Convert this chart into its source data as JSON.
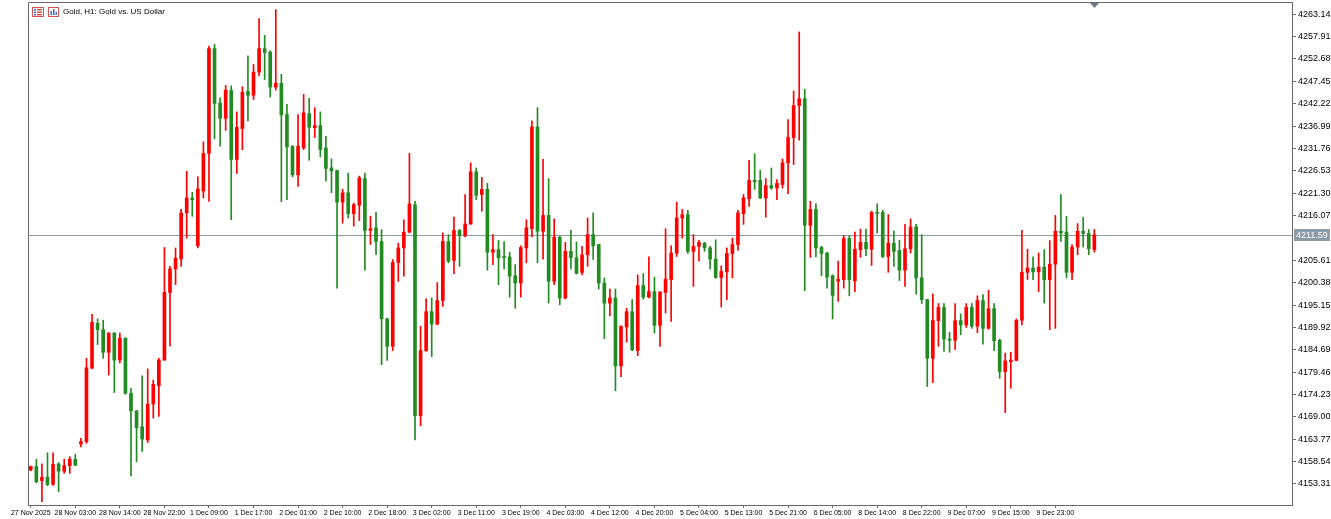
{
  "chart_data": {
    "type": "candlestick",
    "title": "Gold, H1: Gold vs. US Dollar",
    "categories": [
      "27 Nov 2025",
      null,
      null,
      null,
      null,
      null,
      null,
      null,
      "28 Nov 03:00",
      null,
      null,
      null,
      null,
      null,
      null,
      null,
      "28 Nov 14:00",
      null,
      null,
      null,
      null,
      null,
      null,
      null,
      "28 Nov 22:00",
      null,
      null,
      null,
      null,
      null,
      null,
      null,
      "1 Dec 09:00",
      null,
      null,
      null,
      null,
      null,
      null,
      null,
      "1 Dec 17:00",
      null,
      null,
      null,
      null,
      null,
      null,
      null,
      "2 Dec 01:00",
      null,
      null,
      null,
      null,
      null,
      null,
      null,
      "2 Dec 10:00",
      null,
      null,
      null,
      null,
      null,
      null,
      null,
      "2 Dec 18:00",
      null,
      null,
      null,
      null,
      null,
      null,
      null,
      "3 Dec 02:00",
      null,
      null,
      null,
      null,
      null,
      null,
      null,
      "3 Dec 11:00",
      null,
      null,
      null,
      null,
      null,
      null,
      null,
      "3 Dec 19:00",
      null,
      null,
      null,
      null,
      null,
      null,
      null,
      "4 Dec 03:00",
      null,
      null,
      null,
      null,
      null,
      null,
      null,
      "4 Dec 12:00",
      null,
      null,
      null,
      null,
      null,
      null,
      null,
      "4 Dec 20:00",
      null,
      null,
      null,
      null,
      null,
      null,
      null,
      "5 Dec 04:00",
      null,
      null,
      null,
      null,
      null,
      null,
      null,
      "5 Dec 13:00",
      null,
      null,
      null,
      null,
      null,
      null,
      null,
      "5 Dec 21:00",
      null,
      null,
      null,
      null,
      null,
      null,
      null,
      "6 Dec 05:00",
      null,
      null,
      null,
      null,
      null,
      null,
      null,
      "8 Dec 14:00",
      null,
      null,
      null,
      null,
      null,
      null,
      null,
      "8 Dec 22:00",
      null,
      null,
      null,
      null,
      null,
      null,
      null,
      "9 Dec 07:00",
      null,
      null,
      null,
      null,
      null,
      null,
      null,
      "9 Dec 15:00",
      null,
      null,
      null,
      null,
      null,
      null,
      null,
      "9 Dec 23:00",
      null,
      null,
      null,
      null,
      null,
      null,
      null,
      null,
      null,
      null,
      null,
      null,
      null,
      null,
      null,
      null,
      null,
      null,
      null,
      null,
      null,
      null,
      null,
      null,
      null,
      null,
      null,
      null,
      null,
      null,
      null,
      null,
      null,
      null,
      null,
      null,
      null,
      null,
      null,
      null,
      null,
      null
    ],
    "ohlc": [
      [
        4156.6,
        4157.5,
        4156.4,
        4157.4
      ],
      [
        4157.4,
        4159.1,
        4153.6,
        4153.8
      ],
      [
        4154.1,
        4158.0,
        4149.2,
        4154.9
      ],
      [
        4154.9,
        4160.6,
        4152.9,
        4153.2
      ],
      [
        4153.2,
        4160.6,
        4153.0,
        4157.9
      ],
      [
        4158.0,
        4158.3,
        4151.5,
        4156.3
      ],
      [
        4156.3,
        4159.1,
        4155.8,
        4157.6
      ],
      [
        4157.6,
        4159.7,
        4155.8,
        4159.1
      ],
      [
        4159.1,
        4160.3,
        4157.6,
        4157.7
      ],
      [
        4162.7,
        4164.0,
        4162.0,
        4163.2
      ],
      [
        4163.2,
        4182.7,
        4162.8,
        4180.5
      ],
      [
        4180.4,
        4193.0,
        4180.3,
        4191.1
      ],
      [
        4190.9,
        4191.9,
        4185.9,
        4189.4
      ],
      [
        4189.4,
        4191.6,
        4182.7,
        4184.1
      ],
      [
        4184.1,
        4188.7,
        4178.8,
        4188.6
      ],
      [
        4188.6,
        4188.7,
        4174.7,
        4182.3
      ],
      [
        4182.3,
        4188.6,
        4181.6,
        4187.4
      ],
      [
        4187.4,
        4187.5,
        4174.3,
        4174.5
      ],
      [
        4174.5,
        4175.7,
        4155.2,
        4170.4
      ],
      [
        4170.4,
        4170.5,
        4158.5,
        4166.5
      ],
      [
        4166.7,
        4178.6,
        4160.9,
        4163.8
      ],
      [
        4163.6,
        4180.2,
        4163.0,
        4172.0
      ],
      [
        4172.0,
        4177.6,
        4168.7,
        4176.6
      ],
      [
        4176.3,
        4182.7,
        4169.1,
        4182.3
      ],
      [
        4182.3,
        4208.6,
        4182.2,
        4198.1
      ],
      [
        4198.1,
        4204.2,
        4185.6,
        4203.6
      ],
      [
        4203.6,
        4208.5,
        4199.9,
        4206.1
      ],
      [
        4205.9,
        4217.5,
        4204.2,
        4216.7
      ],
      [
        4216.7,
        4226.4,
        4210.8,
        4220.2
      ],
      [
        4220.2,
        4221.5,
        4215.9,
        4219.8
      ],
      [
        4209.0,
        4225.1,
        4208.5,
        4222.3
      ],
      [
        4221.8,
        4233.3,
        4220.2,
        4230.6
      ],
      [
        4230.6,
        4255.7,
        4219.4,
        4255.1
      ],
      [
        4255.1,
        4256.1,
        4234.0,
        4242.3
      ],
      [
        4242.4,
        4243.6,
        4232.3,
        4238.8
      ],
      [
        4238.8,
        4246.5,
        4236.0,
        4245.4
      ],
      [
        4245.3,
        4246.4,
        4215.1,
        4229.2
      ],
      [
        4229.2,
        4240.3,
        4225.9,
        4236.7
      ],
      [
        4236.4,
        4246.2,
        4231.5,
        4244.9
      ],
      [
        4245.1,
        4253.4,
        4238.2,
        4244.2
      ],
      [
        4244.2,
        4251.4,
        4243.2,
        4249.6
      ],
      [
        4249.6,
        4262.1,
        4248.7,
        4255.1
      ],
      [
        4255.1,
        4258.2,
        4247.9,
        4254.2
      ],
      [
        4254.3,
        4254.6,
        4243.8,
        4246.1
      ],
      [
        4246.1,
        4264.2,
        4245.4,
        4247.0
      ],
      [
        4247.0,
        4249.1,
        4219.3,
        4239.6
      ],
      [
        4239.7,
        4242.1,
        4219.8,
        4232.1
      ],
      [
        4232.3,
        4232.4,
        4225.1,
        4225.6
      ],
      [
        4225.6,
        4239.7,
        4222.9,
        4232.3
      ],
      [
        4231.9,
        4244.4,
        4231.5,
        4240.1
      ],
      [
        4239.9,
        4243.5,
        4229.0,
        4236.7
      ],
      [
        4236.6,
        4241.3,
        4234.3,
        4237.1
      ],
      [
        4237.1,
        4240.3,
        4229.8,
        4231.5
      ],
      [
        4231.9,
        4234.6,
        4224.1,
        4227.1
      ],
      [
        4227.2,
        4229.3,
        4221.4,
        4226.5
      ],
      [
        4226.6,
        4226.7,
        4199.1,
        4219.2
      ],
      [
        4219.2,
        4222.2,
        4214.3,
        4221.4
      ],
      [
        4221.4,
        4226.0,
        4215.5,
        4216.5
      ],
      [
        4216.5,
        4219.0,
        4213.6,
        4218.6
      ],
      [
        4218.5,
        4225.3,
        4214.9,
        4224.9
      ],
      [
        4224.7,
        4226.0,
        4203.3,
        4212.6
      ],
      [
        4212.6,
        4215.9,
        4209.3,
        4213.0
      ],
      [
        4213.2,
        4216.8,
        4206.9,
        4210.0
      ],
      [
        4210.0,
        4212.8,
        4181.2,
        4191.9
      ],
      [
        4191.9,
        4192.1,
        4182.2,
        4185.5
      ],
      [
        4185.5,
        4205.8,
        4184.5,
        4205.1
      ],
      [
        4205.1,
        4209.6,
        4200.7,
        4208.5
      ],
      [
        4208.5,
        4215.1,
        4201.9,
        4212.2
      ],
      [
        4212.2,
        4230.6,
        4212.0,
        4218.8
      ],
      [
        4218.6,
        4219.4,
        4163.6,
        4169.3
      ],
      [
        4169.3,
        4190.2,
        4166.9,
        4184.5
      ],
      [
        4184.5,
        4196.6,
        4184.3,
        4193.6
      ],
      [
        4193.6,
        4196.8,
        4183.1,
        4190.7
      ],
      [
        4190.7,
        4200.4,
        4190.5,
        4196.2
      ],
      [
        4196.2,
        4212.0,
        4194.8,
        4210.0
      ],
      [
        4210.0,
        4211.6,
        4205.0,
        4205.4
      ],
      [
        4205.6,
        4215.7,
        4202.5,
        4212.6
      ],
      [
        4212.6,
        4212.8,
        4204.2,
        4211.4
      ],
      [
        4211.4,
        4221.0,
        4211.1,
        4214.1
      ],
      [
        4214.1,
        4228.4,
        4214.0,
        4226.3
      ],
      [
        4226.3,
        4227.2,
        4219.8,
        4220.8
      ],
      [
        4221.0,
        4225.0,
        4217.1,
        4222.2
      ],
      [
        4222.2,
        4223.6,
        4203.3,
        4207.5
      ],
      [
        4207.5,
        4211.6,
        4204.6,
        4208.1
      ],
      [
        4208.1,
        4210.3,
        4199.9,
        4206.2
      ],
      [
        4206.5,
        4210.0,
        4203.6,
        4206.2
      ],
      [
        4206.4,
        4207.5,
        4197.0,
        4201.9
      ],
      [
        4202.0,
        4204.6,
        4194.4,
        4200.3
      ],
      [
        4200.3,
        4209.0,
        4197.0,
        4208.6
      ],
      [
        4208.5,
        4215.1,
        4205.0,
        4213.2
      ],
      [
        4213.0,
        4238.2,
        4211.1,
        4236.8
      ],
      [
        4236.8,
        4241.3,
        4205.0,
        4212.4
      ],
      [
        4212.4,
        4229.2,
        4205.9,
        4216.1
      ],
      [
        4216.1,
        4224.7,
        4195.6,
        4200.7
      ],
      [
        4200.7,
        4215.3,
        4199.9,
        4211.0
      ],
      [
        4211.0,
        4211.2,
        4195.2,
        4196.8
      ],
      [
        4196.8,
        4209.8,
        4196.6,
        4207.7
      ],
      [
        4207.7,
        4212.6,
        4203.6,
        4206.2
      ],
      [
        4206.2,
        4209.9,
        4202.4,
        4202.6
      ],
      [
        4202.8,
        4208.9,
        4202.2,
        4206.9
      ],
      [
        4206.9,
        4215.5,
        4204.2,
        4211.6
      ],
      [
        4211.6,
        4216.7,
        4205.8,
        4209.0
      ],
      [
        4209.3,
        4209.4,
        4198.9,
        4200.3
      ],
      [
        4200.3,
        4201.5,
        4187.3,
        4195.6
      ],
      [
        4195.6,
        4198.9,
        4192.6,
        4196.8
      ],
      [
        4196.8,
        4198.9,
        4175.1,
        4180.9
      ],
      [
        4180.9,
        4190.3,
        4178.4,
        4190.2
      ],
      [
        4190.0,
        4194.4,
        4186.5,
        4193.6
      ],
      [
        4193.6,
        4196.4,
        4184.5,
        4184.7
      ],
      [
        4184.5,
        4202.2,
        4183.3,
        4199.7
      ],
      [
        4199.7,
        4202.5,
        4196.5,
        4197.0
      ],
      [
        4197.0,
        4206.4,
        4196.8,
        4198.3
      ],
      [
        4198.3,
        4201.7,
        4188.6,
        4190.4
      ],
      [
        4190.4,
        4198.3,
        4185.5,
        4198.2
      ],
      [
        4198.1,
        4213.0,
        4193.3,
        4201.2
      ],
      [
        4201.1,
        4209.0,
        4191.3,
        4207.3
      ],
      [
        4207.3,
        4219.2,
        4206.5,
        4215.5
      ],
      [
        4215.5,
        4217.5,
        4210.8,
        4216.3
      ],
      [
        4216.3,
        4217.3,
        4207.2,
        4207.7
      ],
      [
        4207.7,
        4211.6,
        4199.5,
        4208.9
      ],
      [
        4208.9,
        4210.3,
        4205.4,
        4209.8
      ],
      [
        4209.6,
        4209.8,
        4207.7,
        4208.5
      ],
      [
        4208.5,
        4208.9,
        4203.6,
        4205.9
      ],
      [
        4205.9,
        4210.4,
        4201.4,
        4201.6
      ],
      [
        4201.6,
        4204.3,
        4194.7,
        4203.0
      ],
      [
        4202.9,
        4208.5,
        4196.4,
        4207.2
      ],
      [
        4207.2,
        4210.8,
        4201.5,
        4209.3
      ],
      [
        4209.3,
        4217.3,
        4207.9,
        4216.7
      ],
      [
        4216.5,
        4221.0,
        4214.0,
        4220.2
      ],
      [
        4220.0,
        4229.0,
        4218.2,
        4224.3
      ],
      [
        4224.3,
        4230.5,
        4222.2,
        4224.0
      ],
      [
        4224.3,
        4226.7,
        4220.0,
        4220.2
      ],
      [
        4220.2,
        4224.7,
        4215.7,
        4223.1
      ],
      [
        4223.1,
        4227.2,
        4222.2,
        4222.5
      ],
      [
        4222.5,
        4224.5,
        4219.8,
        4223.6
      ],
      [
        4223.3,
        4229.3,
        4222.5,
        4228.4
      ],
      [
        4228.4,
        4238.5,
        4221.2,
        4234.3
      ],
      [
        4234.3,
        4245.2,
        4228.0,
        4241.8
      ],
      [
        4241.8,
        4259.0,
        4233.7,
        4243.4
      ],
      [
        4243.4,
        4245.6,
        4198.5,
        4213.8
      ],
      [
        4213.8,
        4219.4,
        4206.3,
        4217.5
      ],
      [
        4217.5,
        4218.9,
        4206.4,
        4208.5
      ],
      [
        4208.6,
        4208.9,
        4202.0,
        4207.2
      ],
      [
        4207.3,
        4207.5,
        4199.1,
        4201.7
      ],
      [
        4202.0,
        4202.2,
        4191.9,
        4197.4
      ],
      [
        4200.7,
        4205.4,
        4196.0,
        4201.2
      ],
      [
        4201.1,
        4211.4,
        4199.1,
        4210.7
      ],
      [
        4210.7,
        4211.4,
        4197.3,
        4201.1
      ],
      [
        4200.8,
        4212.2,
        4198.3,
        4208.2
      ],
      [
        4208.1,
        4212.9,
        4206.3,
        4209.8
      ],
      [
        4209.8,
        4212.9,
        4206.7,
        4208.3
      ],
      [
        4208.2,
        4217.1,
        4204.4,
        4216.8
      ],
      [
        4216.8,
        4218.8,
        4212.0,
        4216.6
      ],
      [
        4216.8,
        4217.3,
        4206.2,
        4206.5
      ],
      [
        4206.5,
        4216.3,
        4202.8,
        4209.6
      ],
      [
        4209.6,
        4212.5,
        4204.2,
        4207.7
      ],
      [
        4207.9,
        4210.3,
        4200.9,
        4203.3
      ],
      [
        4203.3,
        4214.0,
        4199.5,
        4208.3
      ],
      [
        4208.3,
        4215.3,
        4207.3,
        4213.4
      ],
      [
        4213.4,
        4214.0,
        4197.7,
        4201.5
      ],
      [
        4201.5,
        4211.6,
        4195.5,
        4196.4
      ],
      [
        4196.4,
        4196.5,
        4176.1,
        4182.7
      ],
      [
        4182.7,
        4197.8,
        4177.0,
        4191.5
      ],
      [
        4191.5,
        4195.5,
        4185.5,
        4194.6
      ],
      [
        4194.6,
        4195.5,
        4184.3,
        4187.2
      ],
      [
        4187.2,
        4188.8,
        4184.1,
        4186.9
      ],
      [
        4186.9,
        4195.5,
        4184.8,
        4191.5
      ],
      [
        4191.5,
        4193.1,
        4188.2,
        4190.5
      ],
      [
        4190.5,
        4195.5,
        4189.9,
        4194.6
      ],
      [
        4194.6,
        4195.5,
        4189.7,
        4190.2
      ],
      [
        4190.2,
        4197.3,
        4188.7,
        4196.2
      ],
      [
        4196.2,
        4197.6,
        4186.0,
        4189.7
      ],
      [
        4189.7,
        4198.6,
        4189.5,
        4194.3
      ],
      [
        4194.3,
        4195.5,
        4184.5,
        4186.8
      ],
      [
        4186.9,
        4187.2,
        4178.0,
        4179.6
      ],
      [
        4179.6,
        4183.9,
        4170.0,
        4182.1
      ],
      [
        4181.9,
        4184.1,
        4175.7,
        4182.3
      ],
      [
        4182.2,
        4191.9,
        4182.1,
        4191.6
      ],
      [
        4191.6,
        4212.6,
        4190.5,
        4202.8
      ],
      [
        4202.8,
        4208.2,
        4201.1,
        4203.8
      ],
      [
        4203.8,
        4206.4,
        4201.1,
        4202.9
      ],
      [
        4202.9,
        4207.3,
        4198.3,
        4204.0
      ],
      [
        4204.0,
        4208.1,
        4195.6,
        4201.1
      ],
      [
        4201.1,
        4210.2,
        4189.4,
        4204.7
      ],
      [
        4204.7,
        4216.1,
        4189.7,
        4212.4
      ],
      [
        4212.4,
        4221.0,
        4210.0,
        4212.0
      ],
      [
        4212.2,
        4215.9,
        4201.5,
        4202.8
      ],
      [
        4202.8,
        4209.3,
        4201.1,
        4208.7
      ],
      [
        4208.7,
        4214.2,
        4206.9,
        4212.4
      ],
      [
        4212.4,
        4215.7,
        4208.7,
        4211.9
      ],
      [
        4211.9,
        4212.8,
        4206.9,
        4208.3
      ],
      [
        4208.1,
        4212.8,
        4207.5,
        4211.59
      ],
      null,
      null,
      null,
      null,
      null,
      null,
      null,
      null,
      null,
      null,
      null,
      null,
      null,
      null,
      null,
      null,
      null,
      null,
      null,
      null,
      null,
      null,
      null,
      null,
      null,
      null,
      null,
      null,
      null,
      null,
      null,
      null,
      null,
      null,
      null
    ],
    "colors": [
      "#ff0000",
      "#228b22",
      "#ff0000",
      "#228b22",
      "#ff0000",
      "#228b22",
      "#ff0000",
      "#ff0000",
      "#228b22",
      "#ff0000",
      "#ff0000",
      "#ff0000",
      "#228b22",
      "#228b22",
      "#ff0000",
      "#228b22",
      "#ff0000",
      "#228b22",
      "#228b22",
      "#228b22",
      "#228b22",
      "#ff0000",
      "#ff0000",
      "#ff0000",
      "#ff0000",
      "#ff0000",
      "#ff0000",
      "#ff0000",
      "#ff0000",
      "#228b22",
      "#ff0000",
      "#ff0000",
      "#ff0000",
      "#228b22",
      "#228b22",
      "#ff0000",
      "#228b22",
      "#ff0000",
      "#ff0000",
      "#228b22",
      "#ff0000",
      "#ff0000",
      "#228b22",
      "#228b22",
      "#ff0000",
      "#228b22",
      "#228b22",
      "#228b22",
      "#ff0000",
      "#ff0000",
      "#228b22",
      "#ff0000",
      "#228b22",
      "#228b22",
      "#228b22",
      "#228b22",
      "#ff0000",
      "#228b22",
      "#ff0000",
      "#ff0000",
      "#228b22",
      "#ff0000",
      "#228b22",
      "#228b22",
      "#228b22",
      "#ff0000",
      "#ff0000",
      "#ff0000",
      "#ff0000",
      "#228b22",
      "#ff0000",
      "#ff0000",
      "#228b22",
      "#ff0000",
      "#ff0000",
      "#228b22",
      "#ff0000",
      "#228b22",
      "#ff0000",
      "#ff0000",
      "#228b22",
      "#ff0000",
      "#228b22",
      "#ff0000",
      "#228b22",
      "#228b22",
      "#228b22",
      "#228b22",
      "#ff0000",
      "#ff0000",
      "#ff0000",
      "#228b22",
      "#ff0000",
      "#228b22",
      "#ff0000",
      "#228b22",
      "#ff0000",
      "#228b22",
      "#228b22",
      "#ff0000",
      "#ff0000",
      "#228b22",
      "#228b22",
      "#228b22",
      "#ff0000",
      "#228b22",
      "#ff0000",
      "#ff0000",
      "#228b22",
      "#ff0000",
      "#228b22",
      "#ff0000",
      "#228b22",
      "#ff0000",
      "#ff0000",
      "#ff0000",
      "#ff0000",
      "#ff0000",
      "#228b22",
      "#ff0000",
      "#ff0000",
      "#228b22",
      "#228b22",
      "#228b22",
      "#ff0000",
      "#ff0000",
      "#ff0000",
      "#ff0000",
      "#ff0000",
      "#ff0000",
      "#228b22",
      "#228b22",
      "#ff0000",
      "#228b22",
      "#ff0000",
      "#ff0000",
      "#ff0000",
      "#ff0000",
      "#ff0000",
      "#228b22",
      "#ff0000",
      "#228b22",
      "#228b22",
      "#228b22",
      "#228b22",
      "#ff0000",
      "#ff0000",
      "#228b22",
      "#ff0000",
      "#ff0000",
      "#228b22",
      "#ff0000",
      "#228b22",
      "#228b22",
      "#ff0000",
      "#228b22",
      "#228b22",
      "#ff0000",
      "#ff0000",
      "#228b22",
      "#228b22",
      "#228b22",
      "#ff0000",
      "#ff0000",
      "#228b22",
      "#228b22",
      "#ff0000",
      "#228b22",
      "#ff0000",
      "#228b22",
      "#ff0000",
      "#228b22",
      "#ff0000",
      "#228b22",
      "#228b22",
      "#ff0000",
      "#ff0000",
      "#ff0000",
      "#ff0000",
      "#ff0000",
      "#228b22",
      "#ff0000",
      "#228b22",
      "#ff0000",
      "#ff0000",
      "#228b22",
      "#228b22",
      "#ff0000",
      "#ff0000",
      "#228b22",
      "#228b22",
      "#ff0000",
      null,
      null,
      null,
      null,
      null,
      null,
      null,
      null,
      null,
      null,
      null,
      null,
      null,
      null,
      null,
      null,
      null,
      null,
      null,
      null,
      null,
      null,
      null,
      null,
      null,
      null,
      null,
      null,
      null,
      null,
      null,
      null,
      null,
      null,
      null
    ],
    "ylim": [
      4148.4,
      4266.0
    ],
    "yticks": [
      4153.31,
      4158.54,
      4163.77,
      {
        "value": 4169,
        "label": "4169.00"
      },
      4174.23,
      4179.46,
      4184.69,
      4189.92,
      4195.15,
      4200.38,
      4205.61,
      4216.07,
      {
        "value": 4221.3,
        "label": "4221.30"
      },
      4226.53,
      4231.76,
      4236.99,
      4242.22,
      4247.45,
      4252.68,
      4257.91,
      4263.14
    ],
    "ref_lines": [
      {
        "axis": "y",
        "value": 4211.59,
        "label": "4211.59",
        "color": "#8c9aa6"
      }
    ]
  }
}
